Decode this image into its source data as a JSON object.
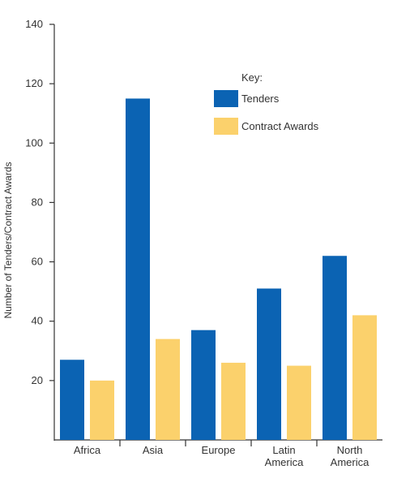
{
  "chart_data": {
    "type": "bar",
    "title": "",
    "xlabel": "",
    "ylabel": "Number of Tenders/Contract Awards",
    "ylim": [
      0,
      140
    ],
    "yticks": [
      20,
      40,
      60,
      80,
      100,
      120,
      140
    ],
    "grid": false,
    "legend_placement": "top-right",
    "legend_title": "Key:",
    "categories": [
      [
        "Africa"
      ],
      [
        "Asia"
      ],
      [
        "Europe"
      ],
      [
        "Latin",
        "America"
      ],
      [
        "North",
        "America"
      ]
    ],
    "series": [
      {
        "name": "Tenders",
        "color": "#0b63b3",
        "values": [
          27,
          115,
          37,
          51,
          62
        ]
      },
      {
        "name": "Contract Awards",
        "color": "#fbd16c",
        "values": [
          20,
          34,
          26,
          25,
          42
        ]
      }
    ]
  }
}
